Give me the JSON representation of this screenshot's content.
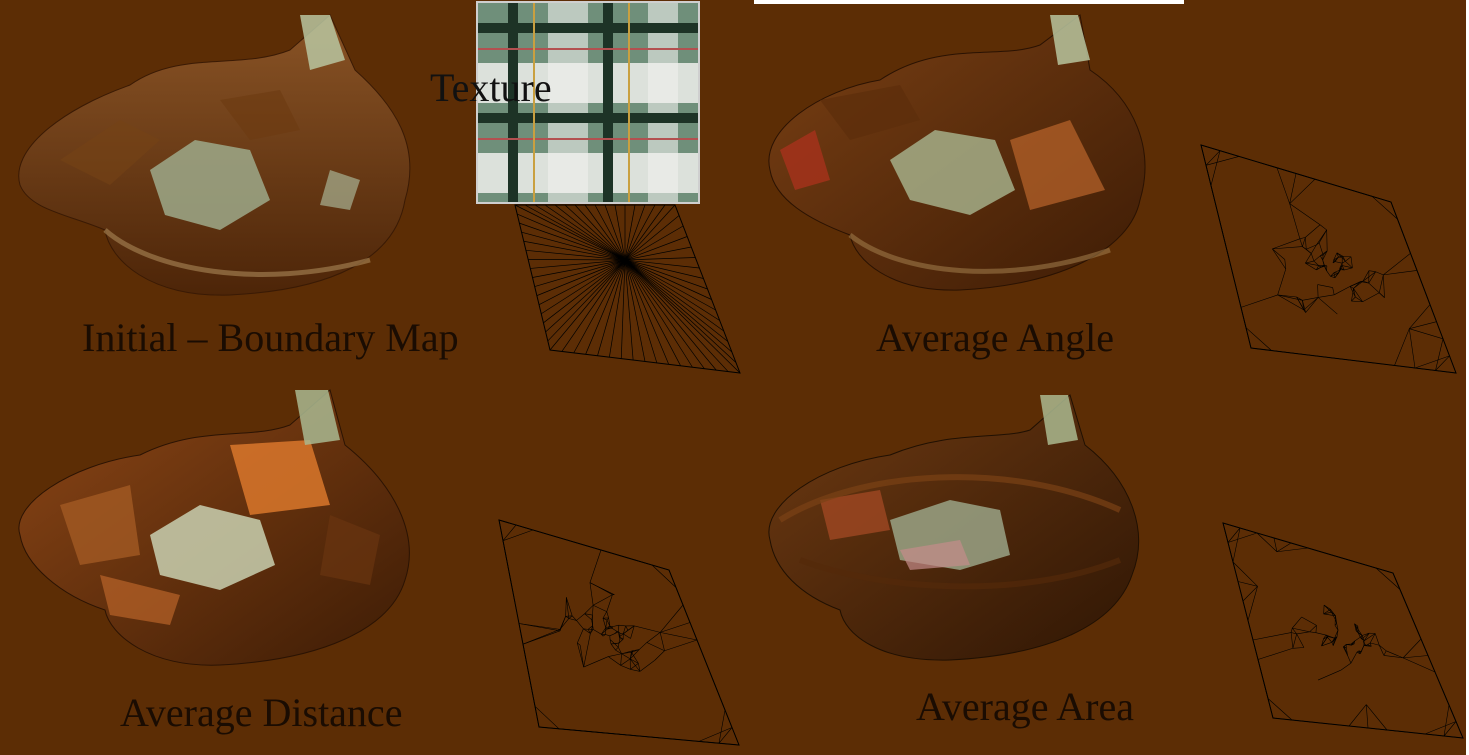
{
  "texture": {
    "label": "Texture"
  },
  "panels": [
    {
      "id": "initial",
      "label": "Initial – Boundary Map"
    },
    {
      "id": "angle",
      "label": "Average Angle"
    },
    {
      "id": "distance",
      "label": "Average Distance"
    },
    {
      "id": "area",
      "label": "Average Area"
    }
  ],
  "colors": {
    "background": "#5c2d05",
    "label_text": "#1a0c02",
    "plaid_green": "#6f8f7a",
    "plaid_white": "#f0f0ec",
    "plaid_dark": "#1d3326"
  }
}
